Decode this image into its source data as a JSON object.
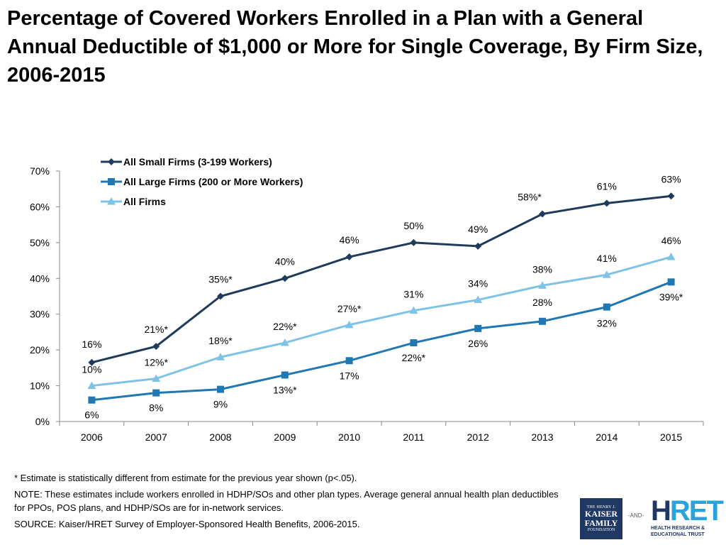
{
  "title": "Percentage of Covered Workers Enrolled in a Plan with a General Annual Deductible of $1,000 or More for Single Coverage, By Firm Size, 2006-2015",
  "chart_data": {
    "type": "line",
    "categories": [
      "2006",
      "2007",
      "2008",
      "2009",
      "2010",
      "2011",
      "2012",
      "2013",
      "2014",
      "2015"
    ],
    "ylim": [
      0,
      70
    ],
    "yticks": [
      "0%",
      "10%",
      "20%",
      "30%",
      "40%",
      "50%",
      "60%",
      "70%"
    ],
    "xlabel": "",
    "ylabel": "",
    "legend_position": "top-left",
    "series": [
      {
        "name": "All Small Firms (3-199 Workers)",
        "marker": "diamond",
        "color": "#1f3b5c",
        "values": [
          16.5,
          21,
          35,
          40,
          46,
          50,
          49,
          58,
          61,
          63
        ],
        "labels": [
          "16%",
          "21%*",
          "35%*",
          "40%",
          "46%",
          "50%",
          "49%",
          "58%*",
          "61%",
          "63%"
        ]
      },
      {
        "name": "All Large Firms (200 or More Workers)",
        "marker": "square",
        "color": "#1f77b4",
        "values": [
          6,
          8,
          9,
          13,
          17,
          22,
          26,
          28,
          32,
          39
        ],
        "labels": [
          "6%",
          "8%",
          "9%",
          "13%*",
          "17%",
          "22%*",
          "26%",
          "28%",
          "32%",
          "39%*"
        ]
      },
      {
        "name": "All Firms",
        "marker": "triangle",
        "color": "#7ec3e6",
        "values": [
          10,
          12,
          18,
          22,
          27,
          31,
          34,
          38,
          41,
          46
        ],
        "labels": [
          "10%",
          "12%*",
          "18%*",
          "22%*",
          "27%*",
          "31%",
          "34%",
          "38%",
          "41%",
          "46%"
        ]
      }
    ]
  },
  "notes": {
    "significance": "* Estimate is statistically different from estimate for the previous year shown (p<.05).",
    "note": "NOTE: These estimates include workers enrolled in HDHP/SOs and other plan types.  Average general annual health plan deductibles for PPOs, POS plans, and HDHP/SOs are for in-network services.",
    "source": "SOURCE: Kaiser/HRET Survey of Employer-Sponsored Health Benefits, 2006-2015."
  },
  "logos": {
    "kff_line1": "THE HENRY J.",
    "kff_line2": "KAISER",
    "kff_line3": "FAMILY",
    "kff_line4": "FOUNDATION",
    "and": "-AND-",
    "hret_h": "H",
    "hret_rest": "RET",
    "hret_line1": "HEALTH RESEARCH &",
    "hret_line2": "EDUCATIONAL TRUST"
  }
}
